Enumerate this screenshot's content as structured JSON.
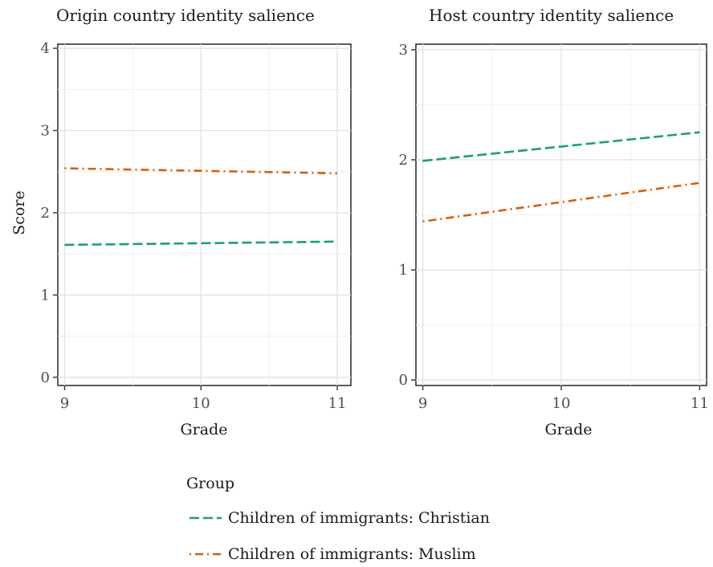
{
  "chart_data": [
    {
      "type": "line",
      "title": "Origin country identity salience",
      "xlabel": "Grade",
      "ylabel": "Score",
      "x": [
        9,
        11
      ],
      "xticks": [
        "9",
        "10",
        "11"
      ],
      "xlim": [
        8.95,
        11.1
      ],
      "ylim": [
        -0.1,
        4.05
      ],
      "yticks": [
        "0",
        "1",
        "2",
        "3",
        "4"
      ],
      "series": [
        {
          "name": "Children of immigrants: Christian",
          "values": [
            1.61,
            1.65
          ],
          "color": "#1b9e77",
          "dash": "longdash"
        },
        {
          "name": "Children of immigrants: Muslim",
          "values": [
            2.54,
            2.48
          ],
          "color": "#d95f02",
          "dash": "dotdash"
        }
      ],
      "grid": true
    },
    {
      "type": "line",
      "title": "Host country identity salience",
      "xlabel": "Grade",
      "ylabel": "",
      "x": [
        9,
        11
      ],
      "xticks": [
        "9",
        "10",
        "11"
      ],
      "xlim": [
        8.95,
        11.05
      ],
      "ylim": [
        -0.05,
        3.05
      ],
      "yticks": [
        "0",
        "1",
        "2",
        "3"
      ],
      "series": [
        {
          "name": "Children of immigrants: Christian",
          "values": [
            1.99,
            2.25
          ],
          "color": "#1b9e77",
          "dash": "longdash"
        },
        {
          "name": "Children of immigrants: Muslim",
          "values": [
            1.44,
            1.79
          ],
          "color": "#d95f02",
          "dash": "dotdash"
        }
      ],
      "grid": true
    }
  ],
  "legend": {
    "title": "Group",
    "placement": "bottom",
    "items": [
      "Children of immigrants: Christian",
      "Children of immigrants: Muslim"
    ]
  }
}
